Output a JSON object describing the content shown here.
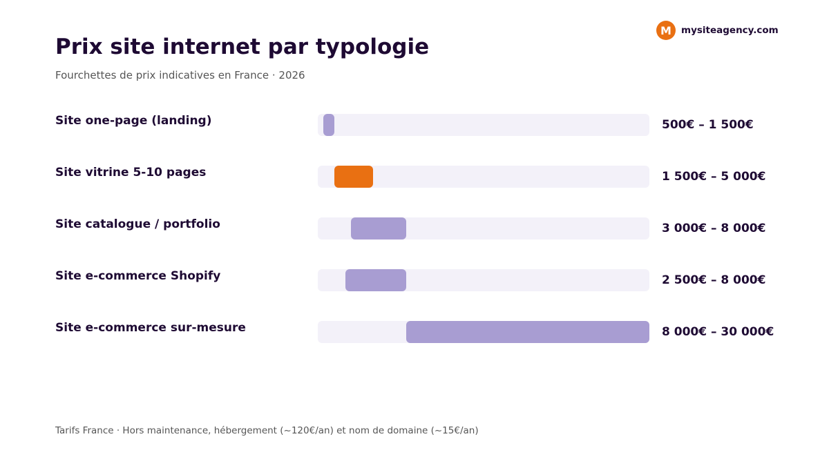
{
  "brand": {
    "logo_letter": "M",
    "name": "mysiteagency.com"
  },
  "footnote": "Tarifs France · Hors maintenance, hébergement (~120€/an) et nom de domaine (~15€/an)",
  "colors": {
    "accent": "#e97012",
    "bar": "#a89dd2",
    "track": "#f3f1f9",
    "text": "#1e0a33"
  },
  "chart_data": {
    "type": "bar",
    "orientation": "horizontal-range",
    "title": "Prix site internet par typologie",
    "subtitle": "Fourchettes de prix indicatives en France · 2026",
    "unit": "€",
    "xlim": [
      0,
      30000
    ],
    "grid": false,
    "categories": [
      "Site one-page (landing)",
      "Site vitrine 5-10 pages",
      "Site catalogue / portfolio",
      "Site e-commerce Shopify",
      "Site e-commerce sur-mesure"
    ],
    "ranges": [
      {
        "min": 500,
        "max": 1500,
        "label": "500€ – 1 500€",
        "highlight": false
      },
      {
        "min": 1500,
        "max": 5000,
        "label": "1 500€ – 5 000€",
        "highlight": true
      },
      {
        "min": 3000,
        "max": 8000,
        "label": "3 000€ – 8 000€",
        "highlight": false
      },
      {
        "min": 2500,
        "max": 8000,
        "label": "2 500€ – 8 000€",
        "highlight": false
      },
      {
        "min": 8000,
        "max": 30000,
        "label": "8 000€ – 30 000€",
        "highlight": false
      }
    ]
  }
}
